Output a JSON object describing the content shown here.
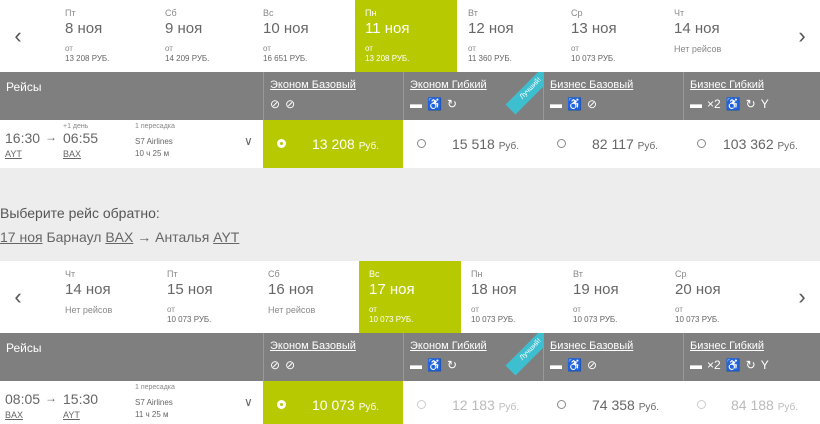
{
  "outbound": {
    "days": [
      {
        "dow": "Пт",
        "date": "8 ноя",
        "pfx": "от",
        "price": "13 208 РУБ."
      },
      {
        "dow": "Сб",
        "date": "9 ноя",
        "pfx": "от",
        "price": "14 209 РУБ."
      },
      {
        "dow": "Вс",
        "date": "10 ноя",
        "pfx": "от",
        "price": "16 651 РУБ."
      },
      {
        "dow": "Пн",
        "date": "11 ноя",
        "pfx": "от",
        "price": "13 208 РУБ."
      },
      {
        "dow": "Вт",
        "date": "12 ноя",
        "pfx": "от",
        "price": "11 360 РУБ."
      },
      {
        "dow": "Ср",
        "date": "13 ноя",
        "pfx": "от",
        "price": "10 073 РУБ."
      },
      {
        "dow": "Чт",
        "date": "14 ноя",
        "none": "Нет рейсов"
      }
    ],
    "flight": {
      "dep_time": "16:30",
      "dep_code": "AYT",
      "next_day": "+1 день",
      "arr_time": "06:55",
      "arr_code": "BAX",
      "stops": "1 пересадка",
      "airline": "S7 Airlines",
      "duration": "10 ч 25 м",
      "prices": [
        {
          "amount": "13 208",
          "cur": "Руб."
        },
        {
          "amount": "15 518",
          "cur": "Руб."
        },
        {
          "amount": "82 117",
          "cur": "Руб."
        },
        {
          "amount": "103 362",
          "cur": "Руб."
        }
      ]
    }
  },
  "header": {
    "label": "Рейсы",
    "fares": [
      "Эконом Базовый",
      "Эконом Гибкий",
      "Бизнес Базовый",
      "Бизнес Гибкий"
    ],
    "badge": "Лучший!",
    "x2": "×2"
  },
  "return": {
    "title": "Выберите рейс обратно:",
    "date": "17 ноя",
    "from_city": "Барнаул",
    "from_code": "BAX",
    "to_city": "Анталья",
    "to_code": "AYT",
    "days": [
      {
        "dow": "Чт",
        "date": "14 ноя",
        "none": "Нет рейсов"
      },
      {
        "dow": "Пт",
        "date": "15 ноя",
        "pfx": "от",
        "price": "10 073 РУБ."
      },
      {
        "dow": "Сб",
        "date": "16 ноя",
        "none": "Нет рейсов"
      },
      {
        "dow": "Вс",
        "date": "17 ноя",
        "pfx": "от",
        "price": "10 073 РУБ."
      },
      {
        "dow": "Пн",
        "date": "18 ноя",
        "pfx": "от",
        "price": "10 073 РУБ."
      },
      {
        "dow": "Вт",
        "date": "19 ноя",
        "pfx": "от",
        "price": "10 073 РУБ."
      },
      {
        "dow": "Ср",
        "date": "20 ноя",
        "pfx": "от",
        "price": "10 073 РУБ."
      }
    ],
    "flight": {
      "dep_time": "08:05",
      "dep_code": "BAX",
      "arr_time": "15:30",
      "arr_code": "AYT",
      "stops": "1 пересадка",
      "airline": "S7 Airlines",
      "duration": "11 ч 25 м",
      "prices": [
        {
          "amount": "10 073",
          "cur": "Руб."
        },
        {
          "amount": "12 183",
          "cur": "Руб."
        },
        {
          "amount": "74 358",
          "cur": "Руб."
        },
        {
          "amount": "84 188",
          "cur": "Руб."
        }
      ]
    }
  },
  "icons": {
    "chevron_left": "‹",
    "chevron_right": "›",
    "arrow": "→",
    "chevron_down": "∨"
  }
}
